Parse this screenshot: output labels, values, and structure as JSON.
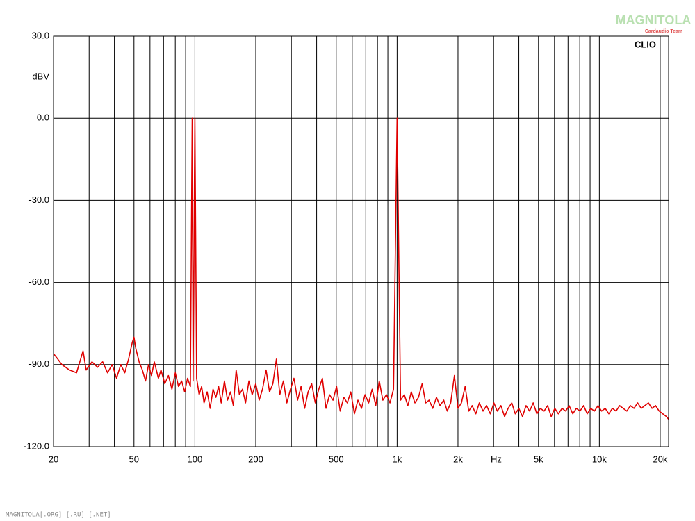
{
  "chart_data": {
    "type": "line",
    "annotations": [
      "CLIO"
    ],
    "ylabel": "dBV",
    "xlabel": "Hz",
    "log_x": true,
    "grid": true,
    "xlim": [
      20,
      22000
    ],
    "ylim": [
      -120,
      30
    ],
    "yticks": [
      {
        "value": 30,
        "label": "30.0"
      },
      {
        "value": 0,
        "label": "0.0"
      },
      {
        "value": -30,
        "label": "-30.0"
      },
      {
        "value": -60,
        "label": "-60.0"
      },
      {
        "value": -90,
        "label": "-90.0"
      },
      {
        "value": -120,
        "label": "-120.0"
      }
    ],
    "xticks": [
      20,
      50,
      100,
      200,
      500,
      {
        "value": 1000,
        "label": "1k"
      },
      {
        "value": 2000,
        "label": "2k"
      },
      {
        "value": 5000,
        "label": "5k"
      },
      {
        "value": 10000,
        "label": "10k"
      },
      {
        "value": 20000,
        "label": "20k"
      }
    ],
    "xgrid_minor": [
      30,
      40,
      60,
      70,
      80,
      90,
      300,
      400,
      600,
      700,
      800,
      900,
      3000,
      4000,
      6000,
      7000,
      8000,
      9000
    ],
    "series": [
      {
        "color": "#e00000",
        "x": [
          20,
          21,
          22,
          24,
          26,
          28,
          29,
          31,
          33,
          35,
          37,
          39,
          41,
          43,
          45,
          47,
          49,
          50,
          51,
          53,
          55,
          57,
          59,
          61,
          63,
          66,
          68,
          71,
          74,
          77,
          80,
          83,
          86,
          89,
          92,
          95,
          97,
          98,
          100,
          102,
          105,
          108,
          111,
          115,
          119,
          123,
          127,
          131,
          135,
          140,
          145,
          150,
          155,
          160,
          166,
          172,
          178,
          185,
          192,
          200,
          208,
          216,
          225,
          234,
          243,
          253,
          263,
          274,
          285,
          297,
          309,
          322,
          335,
          349,
          363,
          378,
          394,
          410,
          427,
          445,
          463,
          482,
          502,
          523,
          545,
          567,
          590,
          615,
          640,
          667,
          694,
          723,
          753,
          784,
          816,
          850,
          885,
          922,
          960,
          1000,
          1040,
          1085,
          1130,
          1175,
          1225,
          1275,
          1330,
          1385,
          1440,
          1500,
          1565,
          1630,
          1700,
          1770,
          1840,
          1920,
          2000,
          2080,
          2170,
          2260,
          2350,
          2450,
          2550,
          2660,
          2770,
          2890,
          3010,
          3130,
          3260,
          3400,
          3540,
          3690,
          3840,
          4000,
          4170,
          4340,
          4520,
          4710,
          4910,
          5110,
          5330,
          5550,
          5780,
          6020,
          6270,
          6540,
          6810,
          7090,
          7390,
          7700,
          8020,
          8360,
          8710,
          9070,
          9450,
          9850,
          10260,
          10690,
          11140,
          11600,
          12090,
          12600,
          13120,
          13670,
          14240,
          14840,
          15460,
          16110,
          16780,
          17480,
          18210,
          18970,
          19770,
          20600,
          21460,
          22000
        ],
        "values": [
          -86,
          -88,
          -90,
          -92,
          -93,
          -85,
          -92,
          -89,
          -91,
          -89,
          -93,
          -90,
          -95,
          -90,
          -93,
          -88,
          -82,
          -80,
          -84,
          -89,
          -92,
          -96,
          -90,
          -94,
          -89,
          -95,
          -92,
          -97,
          -94,
          -99,
          -93,
          -98,
          -96,
          -100,
          -95,
          -98,
          0,
          -96,
          0,
          -95,
          -101,
          -98,
          -104,
          -100,
          -106,
          -99,
          -102,
          -98,
          -104,
          -96,
          -103,
          -100,
          -105,
          -92,
          -101,
          -99,
          -104,
          -96,
          -101,
          -97,
          -103,
          -99,
          -92,
          -100,
          -97,
          -88,
          -101,
          -96,
          -104,
          -99,
          -95,
          -103,
          -98,
          -106,
          -100,
          -97,
          -104,
          -99,
          -95,
          -106,
          -101,
          -103,
          -98,
          -107,
          -102,
          -104,
          -100,
          -108,
          -103,
          -106,
          -101,
          -104,
          -99,
          -105,
          -96,
          -103,
          -101,
          -104,
          -99,
          0,
          -103,
          -101,
          -105,
          -100,
          -104,
          -102,
          -97,
          -104,
          -103,
          -106,
          -102,
          -105,
          -103,
          -107,
          -104,
          -94,
          -106,
          -104,
          -98,
          -107,
          -105,
          -108,
          -104,
          -107,
          -105,
          -108,
          -104,
          -107,
          -105,
          -109,
          -106,
          -104,
          -108,
          -106,
          -109,
          -105,
          -107,
          -104,
          -108,
          -106,
          -107,
          -105,
          -109,
          -106,
          -108,
          -106,
          -107,
          -105,
          -108,
          -106,
          -107,
          -105,
          -108,
          -106,
          -107,
          -105,
          -107,
          -106,
          -108,
          -106,
          -107,
          -105,
          -106,
          -107,
          -105,
          -106,
          -104,
          -106,
          -105,
          -104,
          -106,
          -105,
          -107,
          -108,
          -109,
          -110
        ]
      }
    ]
  },
  "logo": {
    "text": "MAGNITOLA",
    "subtext": "Cardaudio Team"
  },
  "footer": "MAGNITOLA[.ORG] [.RU] [.NET]"
}
